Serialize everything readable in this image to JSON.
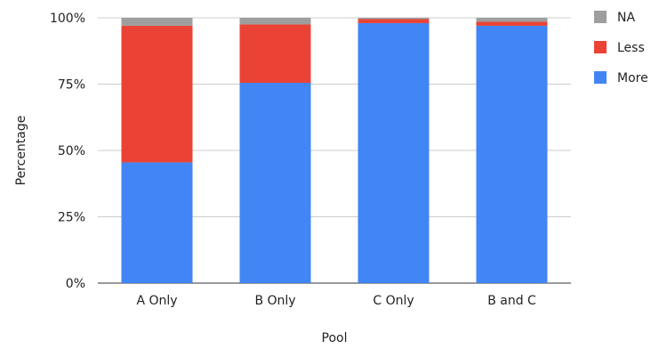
{
  "chart_data": {
    "type": "bar",
    "stacked": true,
    "categories": [
      "A Only",
      "B Only",
      "C Only",
      "B and C"
    ],
    "series": [
      {
        "name": "More",
        "color": "#4285f4",
        "values": [
          45.5,
          75.5,
          98.0,
          97.0
        ]
      },
      {
        "name": "Less",
        "color": "#ea4335",
        "values": [
          51.5,
          22.0,
          1.5,
          1.5
        ]
      },
      {
        "name": "NA",
        "color": "#9e9e9e",
        "values": [
          3.0,
          2.5,
          0.5,
          1.5
        ]
      }
    ],
    "xlabel": "Pool",
    "ylabel": "Percentage",
    "ylim": [
      0,
      100
    ],
    "yticks": [
      0,
      25,
      50,
      75,
      100
    ],
    "ytick_labels": [
      "0%",
      "25%",
      "50%",
      "75%",
      "100%"
    ],
    "legend": {
      "position": "right",
      "order": [
        "NA",
        "Less",
        "More"
      ]
    },
    "grid": true
  }
}
